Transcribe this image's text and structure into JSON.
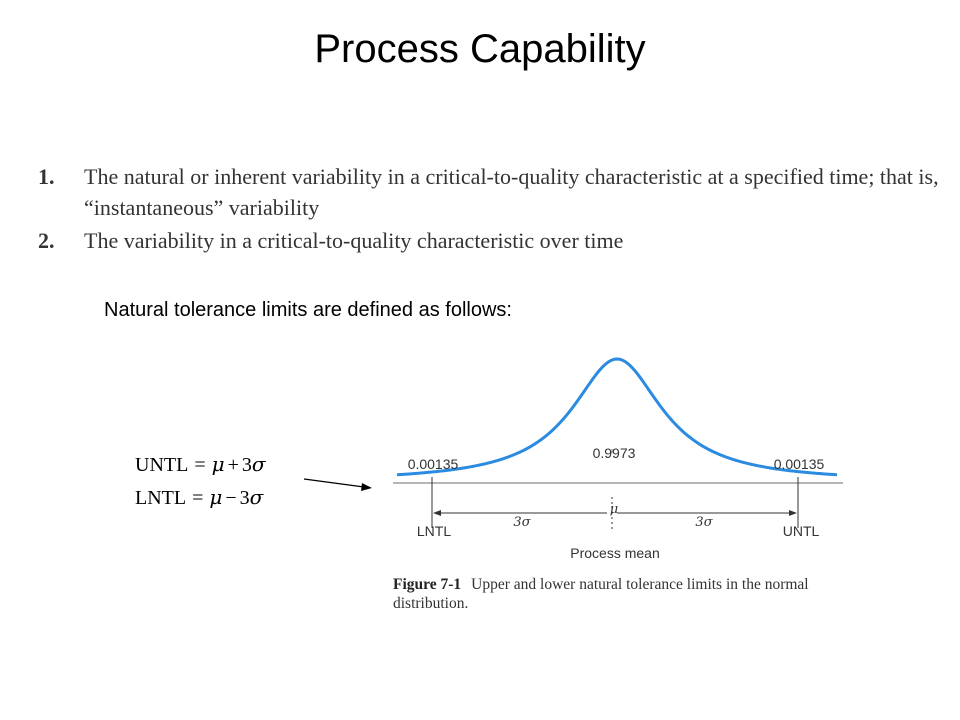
{
  "title": "Process Capability",
  "list": [
    {
      "number": "1.",
      "text": "The natural or inherent variability in a critical-to-quality characteristic at a specified time; that is, “instantaneous” variability"
    },
    {
      "number": "2.",
      "text": "The variability in a critical-to-quality characteristic over time"
    }
  ],
  "intro": "Natural tolerance limits are defined as follows:",
  "formulas": {
    "untl": {
      "lhs": "UNTL",
      "eq": "=",
      "mu": "μ",
      "op": "+",
      "coef": "3",
      "sigma": "σ"
    },
    "lntl": {
      "lhs": "LNTL",
      "eq": "=",
      "mu": "μ",
      "op": "−",
      "coef": "3",
      "sigma": "σ"
    }
  },
  "figure": {
    "center_prob": "0.9973",
    "left_tail": "0.00135",
    "right_tail": "0.00135",
    "mu_label": "μ",
    "left_span": "3σ",
    "right_span": "3σ",
    "left_limit": "LNTL",
    "right_limit": "UNTL",
    "axis_label": "Process mean",
    "curve_color": "#2b8be0"
  },
  "caption": {
    "label": "Figure 7-1",
    "text": "Upper and lower natural tolerance limits in the normal distribution."
  }
}
